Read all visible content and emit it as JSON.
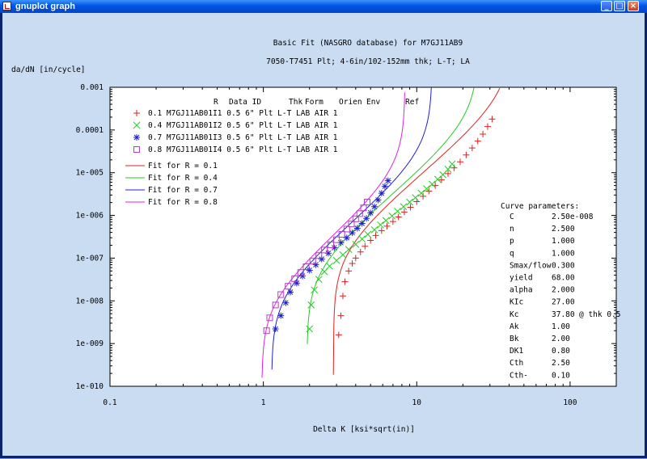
{
  "window": {
    "title": "gnuplot graph",
    "controls": [
      "_",
      "□",
      "×"
    ]
  },
  "chart_data": {
    "type": "scatter",
    "title": "Basic Fit (NASGRO database) for M7GJ11AB9",
    "subtitle": "7050-T7451 Plt; 4-6in/102-152mm thk; L-T; LA",
    "xlabel": "Delta K [ksi*sqrt(in)]",
    "ylabel": "da/dN [in/cycle]",
    "xscale": "log",
    "yscale": "log",
    "xlim": [
      0.1,
      200
    ],
    "ylim": [
      1e-10,
      0.001
    ],
    "xticks": [
      {
        "v": 0.1,
        "label": "0.1"
      },
      {
        "v": 1,
        "label": "1"
      },
      {
        "v": 10,
        "label": "10"
      },
      {
        "v": 100,
        "label": "100"
      }
    ],
    "yticks": [
      {
        "v": 0.001,
        "label": "0.001"
      },
      {
        "v": 0.0001,
        "label": "0.0001"
      },
      {
        "v": 1e-05,
        "label": "1e-005"
      },
      {
        "v": 1e-06,
        "label": "1e-006"
      },
      {
        "v": 1e-07,
        "label": "1e-007"
      },
      {
        "v": 1e-08,
        "label": "1e-008"
      },
      {
        "v": 1e-09,
        "label": "1e-009"
      },
      {
        "v": 1e-10,
        "label": "1e-010"
      }
    ],
    "legend_header": [
      "R",
      "Data ID",
      "Thk",
      "Form",
      "Orien",
      "Env",
      "Ref"
    ],
    "series": [
      {
        "name": "0.1 M7GJ11AB01I1 0.5 6\" Plt L-T  LAB AIR 1",
        "marker": "plus",
        "color": "#e02020",
        "points": [
          [
            3.1,
            1.6e-09
          ],
          [
            3.2,
            4.5e-09
          ],
          [
            3.3,
            1.3e-08
          ],
          [
            3.4,
            2.8e-08
          ],
          [
            3.6,
            5e-08
          ],
          [
            3.8,
            7.5e-08
          ],
          [
            4.0,
            1e-07
          ],
          [
            4.3,
            1.4e-07
          ],
          [
            4.6,
            1.9e-07
          ],
          [
            5.0,
            2.6e-07
          ],
          [
            5.4,
            3.4e-07
          ],
          [
            5.9,
            4.4e-07
          ],
          [
            6.4,
            5.6e-07
          ],
          [
            7.0,
            7.2e-07
          ],
          [
            7.6,
            9.2e-07
          ],
          [
            8.3,
            1.2e-06
          ],
          [
            9.1,
            1.55e-06
          ],
          [
            10.0,
            2.1e-06
          ],
          [
            11.0,
            2.8e-06
          ],
          [
            12.0,
            3.7e-06
          ],
          [
            13.2,
            5e-06
          ],
          [
            14.5,
            6.8e-06
          ],
          [
            16.0,
            9.5e-06
          ],
          [
            17.5,
            1.3e-05
          ],
          [
            19.2,
            1.8e-05
          ],
          [
            21.0,
            2.6e-05
          ],
          [
            23.0,
            3.8e-05
          ],
          [
            25.0,
            5.5e-05
          ],
          [
            27.0,
            8e-05
          ],
          [
            29.0,
            0.00012
          ],
          [
            31.0,
            0.00018
          ]
        ]
      },
      {
        "name": "0.4 M7GJ11AB01I2 0.5 6\" Plt L-T  LAB AIR 1",
        "marker": "x",
        "color": "#22cc22",
        "points": [
          [
            2.0,
            2.2e-09
          ],
          [
            2.05,
            8e-09
          ],
          [
            2.15,
            1.8e-08
          ],
          [
            2.3,
            3.2e-08
          ],
          [
            2.5,
            4.8e-08
          ],
          [
            2.7,
            6.5e-08
          ],
          [
            3.0,
            8.8e-08
          ],
          [
            3.3,
            1.2e-07
          ],
          [
            3.6,
            1.6e-07
          ],
          [
            4.0,
            2.1e-07
          ],
          [
            4.4,
            2.8e-07
          ],
          [
            4.8,
            3.6e-07
          ],
          [
            5.3,
            4.6e-07
          ],
          [
            5.8,
            6e-07
          ],
          [
            6.3,
            7.6e-07
          ],
          [
            6.9,
            9.7e-07
          ],
          [
            7.5,
            1.25e-06
          ],
          [
            8.2,
            1.6e-06
          ],
          [
            9.0,
            2.05e-06
          ],
          [
            9.8,
            2.6e-06
          ],
          [
            10.7,
            3.3e-06
          ],
          [
            11.6,
            4.2e-06
          ],
          [
            12.6,
            5.4e-06
          ],
          [
            13.7,
            7e-06
          ],
          [
            14.8,
            9e-06
          ],
          [
            16.0,
            1.2e-05
          ],
          [
            17.0,
            1.6e-05
          ]
        ]
      },
      {
        "name": "0.7 M7GJ11AB01I3 0.5 6\" Plt L-T  LAB AIR 1",
        "marker": "star",
        "color": "#2020d0",
        "points": [
          [
            1.2,
            2.2e-09
          ],
          [
            1.3,
            4.5e-09
          ],
          [
            1.4,
            9e-09
          ],
          [
            1.5,
            1.6e-08
          ],
          [
            1.65,
            2.6e-08
          ],
          [
            1.8,
            3.8e-08
          ],
          [
            2.0,
            5.2e-08
          ],
          [
            2.2,
            7e-08
          ],
          [
            2.4,
            9.5e-08
          ],
          [
            2.65,
            1.3e-07
          ],
          [
            2.9,
            1.75e-07
          ],
          [
            3.2,
            2.3e-07
          ],
          [
            3.5,
            3e-07
          ],
          [
            3.8,
            3.9e-07
          ],
          [
            4.1,
            5e-07
          ],
          [
            4.4,
            6.5e-07
          ],
          [
            4.7,
            8.5e-07
          ],
          [
            5.0,
            1.15e-06
          ],
          [
            5.3,
            1.6e-06
          ],
          [
            5.6,
            2.3e-06
          ],
          [
            5.9,
            3.3e-06
          ],
          [
            6.2,
            4.8e-06
          ],
          [
            6.5,
            6.5e-06
          ]
        ]
      },
      {
        "name": "0.8 M7GJ11AB01I4 0.5 6\" Plt L-T  LAB AIR 1",
        "marker": "square",
        "color": "#b040c0",
        "points": [
          [
            1.05,
            2e-09
          ],
          [
            1.1,
            4e-09
          ],
          [
            1.2,
            8e-09
          ],
          [
            1.3,
            1.4e-08
          ],
          [
            1.45,
            2.2e-08
          ],
          [
            1.6,
            3.3e-08
          ],
          [
            1.75,
            4.6e-08
          ],
          [
            1.9,
            6.3e-08
          ],
          [
            2.1,
            8.5e-08
          ],
          [
            2.3,
            1.15e-07
          ],
          [
            2.5,
            1.55e-07
          ],
          [
            2.75,
            2.05e-07
          ],
          [
            3.0,
            2.7e-07
          ],
          [
            3.25,
            3.6e-07
          ],
          [
            3.5,
            4.8e-07
          ],
          [
            3.75,
            6.3e-07
          ],
          [
            4.0,
            8.3e-07
          ],
          [
            4.25,
            1.1e-06
          ],
          [
            4.5,
            1.5e-06
          ],
          [
            4.75,
            2.05e-06
          ]
        ]
      }
    ],
    "fits": [
      {
        "name": "Fit for R =   0.1",
        "color": "#e02020",
        "dKth": 2.86,
        "Kmax_c": 42.0
      },
      {
        "name": "Fit for R =   0.4",
        "color": "#22cc22",
        "dKth": 1.92,
        "Kmax_c": 25.2
      },
      {
        "name": "Fit for R =   0.7",
        "color": "#2020d0",
        "dKth": 1.13,
        "Kmax_c": 12.6
      },
      {
        "name": "Fit for R =   0.8",
        "color": "#e020e0",
        "dKth": 0.975,
        "Kmax_c": 8.4
      }
    ],
    "params_header": "Curve parameters:",
    "params": [
      {
        "name": "C",
        "value": "2.50e-008"
      },
      {
        "name": "n",
        "value": "2.500"
      },
      {
        "name": "p",
        "value": "1.000"
      },
      {
        "name": "q",
        "value": "1.000"
      },
      {
        "name": "Smax/flow",
        "value": "0.300"
      },
      {
        "name": "yield",
        "value": "68.00"
      },
      {
        "name": "alpha",
        "value": "2.000"
      },
      {
        "name": "KIc",
        "value": "27.00"
      },
      {
        "name": "Kc",
        "value": "37.80",
        "note": "@ thk 0.5"
      },
      {
        "name": "Ak",
        "value": "1.00"
      },
      {
        "name": "Bk",
        "value": "2.00"
      },
      {
        "name": "DK1",
        "value": "0.80"
      },
      {
        "name": "Cth",
        "value": "2.50"
      },
      {
        "name": "Cth-",
        "value": "0.10"
      }
    ]
  }
}
